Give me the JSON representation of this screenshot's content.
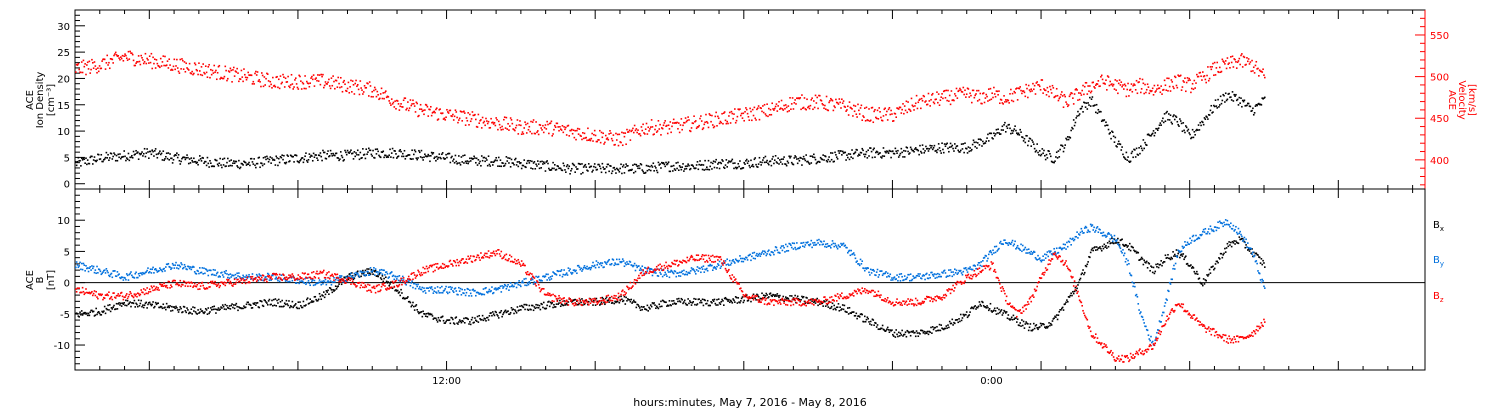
{
  "chart_data": [
    {
      "type": "scatter",
      "left_axis": {
        "label_lines": [
          "ACE",
          "Ion Density",
          "[cm⁻³]"
        ],
        "ticks": [
          0,
          5,
          10,
          15,
          20,
          25,
          30
        ],
        "ylim": [
          -1,
          33
        ],
        "color": "#000000"
      },
      "right_axis": {
        "label_lines": [
          "ACE",
          "Velocity",
          "[km/s]"
        ],
        "ticks": [
          400,
          450,
          500,
          550
        ],
        "ylim": [
          365,
          580
        ],
        "color": "#ff0000"
      },
      "series": [
        {
          "id": "density",
          "axis": "left",
          "color": "#000000",
          "x": [
            0,
            1,
            2,
            3,
            4,
            5,
            6,
            7,
            8,
            9,
            10,
            11,
            12,
            13,
            14,
            15,
            16,
            17,
            18,
            19,
            20,
            21,
            22,
            23,
            24,
            25,
            26,
            27,
            28,
            29,
            30,
            31,
            32,
            33,
            34,
            35,
            36,
            36.5,
            37,
            37.5,
            38,
            38.5,
            39,
            39.5,
            40,
            40.5,
            41,
            41.5,
            42,
            42.5,
            43,
            43.5,
            44,
            44.5,
            45,
            45.5,
            46,
            46.5,
            47,
            47.5,
            48
          ],
          "y": [
            4,
            5,
            5.5,
            6,
            5,
            4.5,
            4,
            4,
            4.5,
            5,
            5.5,
            5.5,
            6,
            6,
            5.5,
            5,
            4.5,
            4.5,
            4,
            3.5,
            3,
            3,
            3,
            3,
            3.5,
            3.5,
            4,
            4,
            4.5,
            4.5,
            5,
            5.5,
            6,
            6,
            6.5,
            7,
            7,
            8,
            9,
            11,
            10,
            8,
            6,
            5,
            8,
            14,
            16,
            12,
            8,
            5,
            7,
            10,
            13,
            12,
            9,
            12,
            15,
            17,
            16,
            14,
            16
          ]
        },
        {
          "id": "velocity",
          "axis": "right",
          "color": "#ff0000",
          "x": [
            0,
            1,
            2,
            3,
            4,
            5,
            6,
            7,
            8,
            9,
            10,
            11,
            12,
            13,
            14,
            15,
            16,
            17,
            18,
            19,
            20,
            21,
            22,
            23,
            24,
            25,
            26,
            27,
            28,
            29,
            30,
            31,
            32,
            33,
            34,
            35,
            36,
            36.5,
            37,
            37.5,
            38,
            38.5,
            39,
            39.5,
            40,
            40.5,
            41,
            41.5,
            42,
            42.5,
            43,
            43.5,
            44,
            44.5,
            45,
            45.5,
            46,
            46.5,
            47,
            47.5,
            48
          ],
          "y": [
            510,
            515,
            525,
            520,
            515,
            510,
            505,
            500,
            495,
            495,
            495,
            490,
            485,
            470,
            460,
            455,
            450,
            445,
            440,
            440,
            435,
            430,
            425,
            440,
            440,
            445,
            450,
            455,
            460,
            470,
            470,
            465,
            455,
            455,
            470,
            475,
            480,
            475,
            480,
            475,
            480,
            485,
            490,
            480,
            470,
            480,
            490,
            495,
            490,
            485,
            490,
            485,
            490,
            495,
            490,
            500,
            510,
            515,
            520,
            515,
            500
          ]
        }
      ]
    },
    {
      "type": "scatter",
      "left_axis": {
        "label_lines": [
          "ACE",
          "B",
          "[nT]"
        ],
        "ticks": [
          -10,
          -5,
          0,
          5,
          10
        ],
        "ylim": [
          -14,
          15
        ]
      },
      "legend": [
        "Bx",
        "By",
        "Bz"
      ],
      "series": [
        {
          "id": "bx",
          "color": "#000000",
          "x": [
            0,
            1,
            2,
            3,
            4,
            5,
            6,
            7,
            8,
            9,
            10,
            11,
            12,
            13,
            14,
            15,
            16,
            17,
            18,
            19,
            20,
            21,
            22,
            23,
            24,
            25,
            26,
            27,
            28,
            29,
            30,
            31,
            32,
            33,
            34,
            35,
            36,
            36.5,
            37,
            37.5,
            38,
            38.5,
            39,
            39.5,
            40,
            40.5,
            41,
            41.5,
            42,
            42.5,
            43,
            43.5,
            44,
            44.5,
            45,
            45.5,
            46,
            46.5,
            47,
            47.5,
            48
          ],
          "y": [
            -5,
            -4.5,
            -3,
            -3.5,
            -4,
            -4.5,
            -4,
            -3.5,
            -3,
            -3.5,
            -2,
            1,
            2,
            -1,
            -5,
            -6,
            -6,
            -5,
            -4,
            -3.5,
            -3,
            -3,
            -2.5,
            -4,
            -3,
            -3,
            -3,
            -2.5,
            -2,
            -2.5,
            -3,
            -4,
            -6,
            -8,
            -8,
            -7,
            -5,
            -3,
            -4,
            -5,
            -6,
            -7,
            -7,
            -6,
            -3,
            0,
            5,
            6,
            7,
            6,
            4,
            2,
            4,
            5,
            3,
            0,
            3,
            6,
            7,
            5,
            3
          ]
        },
        {
          "id": "by",
          "color": "#0070dd",
          "x": [
            0,
            1,
            2,
            3,
            4,
            5,
            6,
            7,
            8,
            9,
            10,
            11,
            12,
            13,
            14,
            15,
            16,
            17,
            18,
            19,
            20,
            21,
            22,
            23,
            24,
            25,
            26,
            27,
            28,
            29,
            30,
            31,
            32,
            33,
            34,
            35,
            36,
            36.5,
            37,
            37.5,
            38,
            38.5,
            39,
            39.5,
            40,
            40.5,
            41,
            41.5,
            42,
            42.5,
            43,
            43.5,
            44,
            44.5,
            45,
            45.5,
            46,
            46.5,
            47,
            47.5,
            48
          ],
          "y": [
            3,
            2,
            1,
            2,
            3,
            2,
            1.5,
            1,
            1,
            0.5,
            0,
            1,
            2,
            1,
            -1,
            -1,
            -1.5,
            -1,
            0,
            1,
            2,
            3,
            3.5,
            2,
            1.5,
            2,
            3,
            4,
            5,
            6,
            6.5,
            6,
            2,
            1,
            1,
            1.5,
            2,
            3,
            5,
            7,
            6,
            5,
            4,
            5,
            6,
            8,
            9,
            8,
            7,
            3,
            -5,
            -10,
            -3,
            5,
            7,
            8,
            9,
            10,
            8,
            5,
            -1
          ]
        },
        {
          "id": "bz",
          "color": "#ff0000",
          "x": [
            0,
            1,
            2,
            3,
            4,
            5,
            6,
            7,
            8,
            9,
            10,
            11,
            12,
            13,
            14,
            15,
            16,
            17,
            18,
            19,
            20,
            21,
            22,
            23,
            24,
            25,
            26,
            27,
            28,
            29,
            30,
            31,
            32,
            33,
            34,
            35,
            36,
            36.5,
            37,
            37.5,
            38,
            38.5,
            39,
            39.5,
            40,
            40.5,
            41,
            41.5,
            42,
            42.5,
            43,
            43.5,
            44,
            44.5,
            45,
            45.5,
            46,
            46.5,
            47,
            47.5,
            48
          ],
          "y": [
            -1,
            -2,
            -2,
            -1,
            0,
            -0.5,
            0,
            0.5,
            1,
            1,
            1.5,
            0.5,
            -1,
            0,
            2,
            3,
            4,
            5,
            3,
            -2,
            -3,
            -3,
            -2,
            2,
            3,
            4,
            4,
            -2,
            -3,
            -3,
            -3,
            -2,
            -1,
            -3,
            -3,
            -2,
            1,
            2,
            3,
            -2,
            -5,
            -3,
            1,
            5,
            3,
            -2,
            -8,
            -10,
            -12,
            -12,
            -11,
            -10,
            -6,
            -3,
            -5,
            -7,
            -8,
            -9,
            -9,
            -8,
            -6
          ]
        }
      ]
    }
  ],
  "x_axis": {
    "range_hours": [
      0,
      54.5
    ],
    "ticks": [
      {
        "hour": 15,
        "label": "12:00"
      },
      {
        "hour": 37,
        "label": "0:00"
      }
    ],
    "title": "hours:minutes, May  7, 2016 - May  8, 2016"
  },
  "colors": {
    "axes": "#000000",
    "velocity": "#ff0000",
    "by": "#0070dd"
  }
}
